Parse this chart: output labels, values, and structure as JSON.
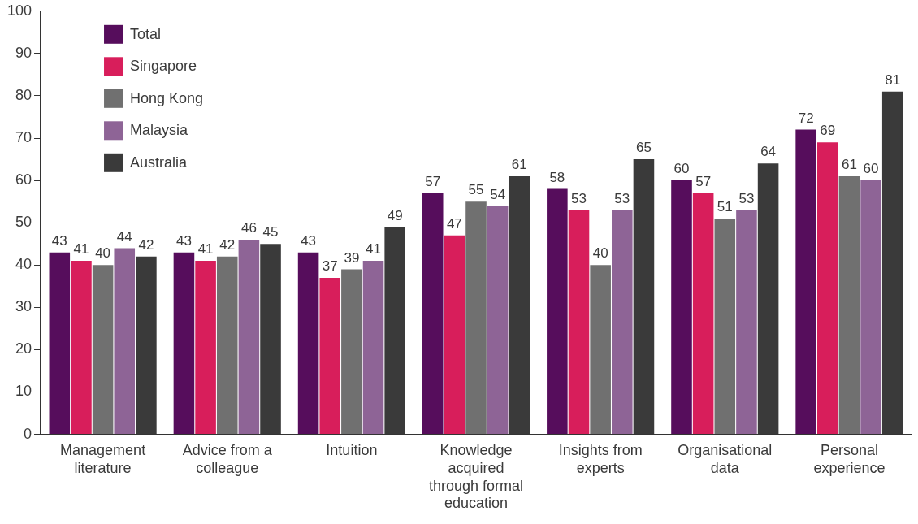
{
  "chart_data": {
    "type": "bar",
    "categories": [
      "Management literature",
      "Advice from a colleague",
      "Intuition",
      "Knowledge acquired through formal education",
      "Insights from experts",
      "Organisational data",
      "Personal experience"
    ],
    "series": [
      {
        "name": "Total",
        "color": "#560d5c",
        "values": [
          43,
          43,
          43,
          57,
          58,
          60,
          72
        ]
      },
      {
        "name": "Singapore",
        "color": "#d81e5b",
        "values": [
          41,
          41,
          37,
          47,
          53,
          57,
          69
        ]
      },
      {
        "name": "Hong Kong",
        "color": "#707070",
        "values": [
          40,
          42,
          39,
          55,
          40,
          51,
          61
        ]
      },
      {
        "name": "Malaysia",
        "color": "#8e6496",
        "values": [
          44,
          46,
          41,
          54,
          53,
          53,
          60
        ]
      },
      {
        "name": "Australia",
        "color": "#3a3a3a",
        "values": [
          42,
          45,
          49,
          61,
          65,
          64,
          81
        ]
      }
    ],
    "ylim": [
      0,
      100
    ],
    "yticks": [
      0,
      10,
      20,
      30,
      40,
      50,
      60,
      70,
      80,
      90,
      100
    ],
    "grid": false,
    "legend": "top left",
    "data_labels": true
  }
}
